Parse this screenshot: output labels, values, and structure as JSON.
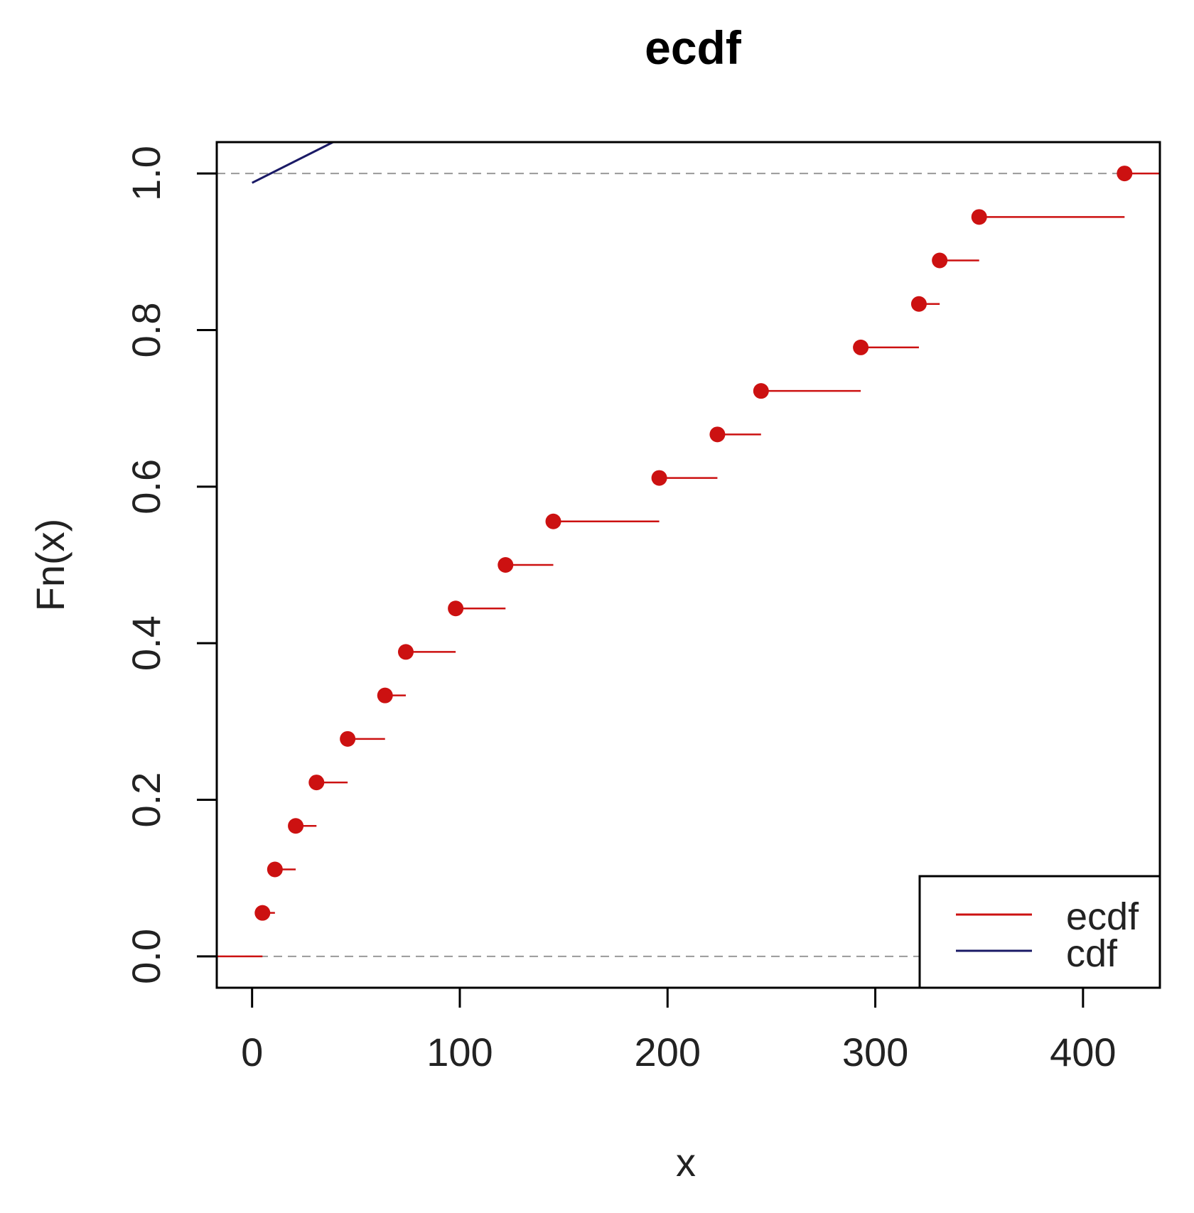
{
  "chart_data": {
    "type": "line",
    "title": "ecdf",
    "xlabel": "x",
    "ylabel": "Fn(x)",
    "xlim": [
      -17,
      437
    ],
    "ylim": [
      -0.04,
      1.04
    ],
    "x_ticks": [
      0,
      100,
      200,
      300,
      400
    ],
    "x_tick_labels": [
      "0",
      "100",
      "200",
      "300",
      "400"
    ],
    "y_ticks": [
      0.0,
      0.2,
      0.4,
      0.6,
      0.8,
      1.0
    ],
    "y_tick_labels": [
      "0.0",
      "0.2",
      "0.4",
      "0.6",
      "0.8",
      "1.0"
    ],
    "reference_lines": [
      0,
      1
    ],
    "grid": false,
    "legend": {
      "position": "bottom-right",
      "entries": [
        {
          "label": "ecdf",
          "color": "#cc1111"
        },
        {
          "label": "cdf",
          "color": "#1a1a66"
        }
      ]
    },
    "series": [
      {
        "name": "ecdf",
        "kind": "step",
        "color": "#cc1111",
        "x": [
          5,
          11,
          21,
          31,
          46,
          64,
          74,
          98,
          122,
          145,
          196,
          224,
          245,
          293,
          321,
          331,
          350,
          420
        ],
        "y": [
          0.0556,
          0.1111,
          0.1667,
          0.2222,
          0.2778,
          0.3333,
          0.3889,
          0.4444,
          0.5,
          0.5556,
          0.6111,
          0.6667,
          0.7222,
          0.7778,
          0.8333,
          0.8889,
          0.9444,
          1.0
        ]
      },
      {
        "name": "cdf",
        "kind": "line",
        "color": "#1a1a66",
        "x": [
          0,
          39
        ],
        "y": [
          0.988,
          1.04
        ]
      }
    ]
  }
}
